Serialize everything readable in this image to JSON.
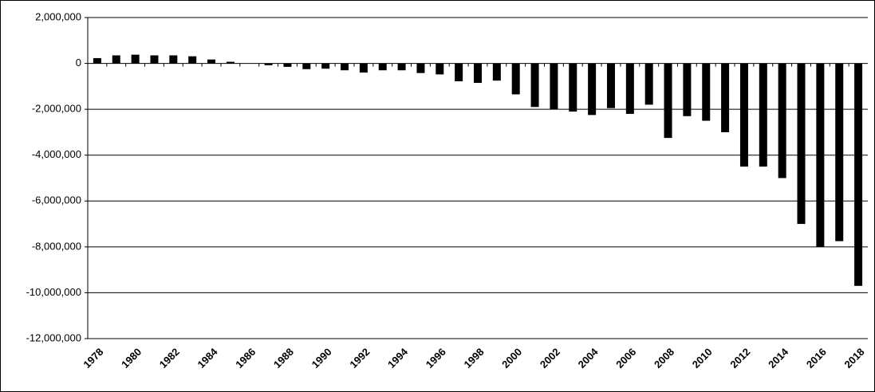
{
  "chart_data": {
    "type": "bar",
    "categories": [
      "1978",
      null,
      "1980",
      null,
      "1982",
      null,
      "1984",
      null,
      "1986",
      null,
      "1988",
      null,
      "1990",
      null,
      "1992",
      null,
      "1994",
      null,
      "1996",
      null,
      "1998",
      null,
      "2000",
      null,
      "2002",
      null,
      "2004",
      null,
      "2006",
      null,
      "2008",
      null,
      "2010",
      null,
      "2012",
      null,
      "2014",
      null,
      "2016",
      null,
      "2018"
    ],
    "values": [
      230000,
      350000,
      380000,
      350000,
      350000,
      310000,
      170000,
      70000,
      0,
      -80000,
      -150000,
      -250000,
      -230000,
      -300000,
      -400000,
      -300000,
      -300000,
      -420000,
      -480000,
      -780000,
      -850000,
      -750000,
      -1350000,
      -1900000,
      -2000000,
      -2100000,
      -2250000,
      -1950000,
      -2200000,
      -1800000,
      -3250000,
      -2300000,
      -2500000,
      -3000000,
      -4500000,
      -4500000,
      -5000000,
      -7000000,
      -8000000,
      -7750000,
      -9700000
    ],
    "color": "#000000",
    "ylim": [
      -12000000,
      2000000
    ],
    "yticks": [
      {
        "value": -12000000,
        "label": "-12,000,000"
      },
      {
        "value": -10000000,
        "label": "-10,000,000"
      },
      {
        "value": -8000000,
        "label": "-8,000,000"
      },
      {
        "value": -6000000,
        "label": "-6,000,000"
      },
      {
        "value": -4000000,
        "label": "-4,000,000"
      },
      {
        "value": -2000000,
        "label": "-2,000,000"
      },
      0,
      {
        "value": 2000000,
        "label": "2,000,000"
      }
    ],
    "grid": true
  }
}
